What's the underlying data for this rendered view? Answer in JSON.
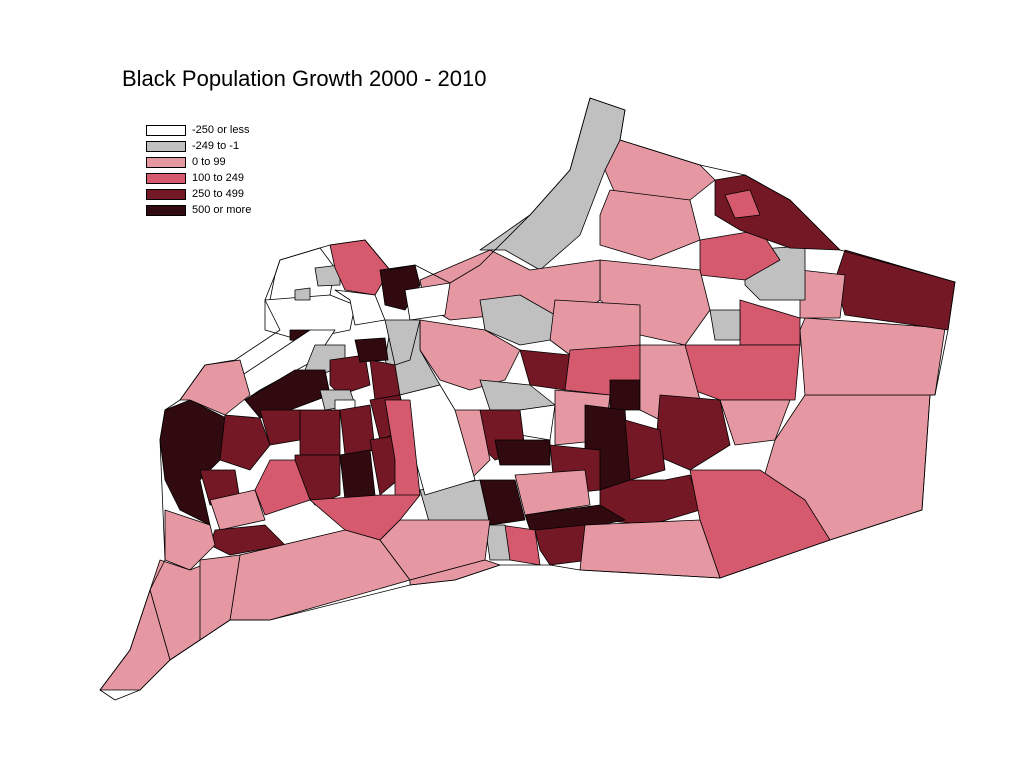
{
  "title": "Black Population Growth 2000 - 2010",
  "legend": [
    {
      "label": "-250 or less",
      "color": "#ffffff"
    },
    {
      "label": "-249 to -1",
      "color": "#c0c0c0"
    },
    {
      "label": "0 to 99",
      "color": "#e597a2"
    },
    {
      "label": "100 to 249",
      "color": "#d65a6e"
    },
    {
      "label": "250 to 499",
      "color": "#731824"
    },
    {
      "label": "500 or more",
      "color": "#310a10"
    }
  ]
}
